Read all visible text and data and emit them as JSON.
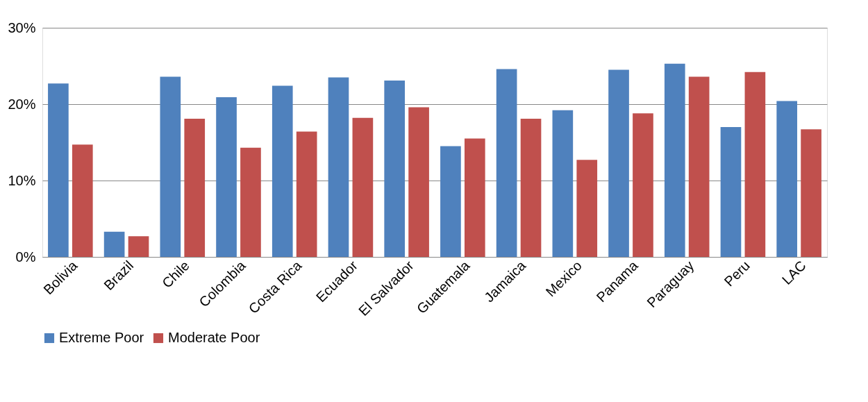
{
  "chart_data": {
    "type": "bar",
    "categories": [
      "Bolivia",
      "Brazil",
      "Chile",
      "Colombia",
      "Costa Rica",
      "Ecuador",
      "El Salvador",
      "Guatemala",
      "Jamaica",
      "Mexico",
      "Panama",
      "Paraguay",
      "Peru",
      "LAC"
    ],
    "series": [
      {
        "name": "Extreme Poor",
        "color": "#4f81bd",
        "values": [
          22.7,
          3.3,
          23.6,
          20.9,
          22.4,
          23.5,
          23.1,
          14.5,
          24.6,
          19.2,
          24.5,
          25.3,
          17.0,
          20.4
        ]
      },
      {
        "name": "Moderate Poor",
        "color": "#c0504d",
        "values": [
          14.7,
          2.7,
          18.1,
          14.3,
          16.4,
          18.2,
          19.6,
          15.5,
          18.1,
          12.7,
          18.8,
          23.6,
          24.2,
          16.7
        ]
      }
    ],
    "ylim": [
      0,
      30
    ],
    "yticks": [
      {
        "value": 0,
        "label": "0%"
      },
      {
        "value": 10,
        "label": "10%"
      },
      {
        "value": 20,
        "label": "20%"
      },
      {
        "value": 30,
        "label": "30%"
      }
    ],
    "grid": "y",
    "legend": "bottom"
  }
}
